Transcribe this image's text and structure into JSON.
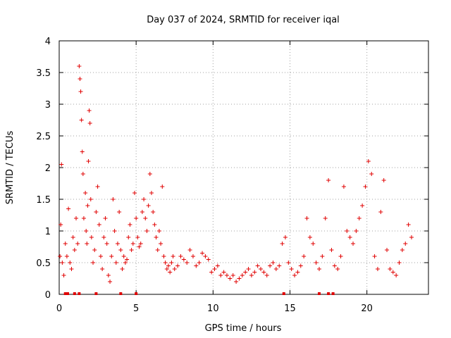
{
  "chart_data": {
    "type": "scatter",
    "title": "Day 037 of 2024, SRMTID for receiver iqal",
    "xlabel": "GPS time / hours",
    "ylabel": "SRMTID / TECUs",
    "xlim": [
      0,
      24
    ],
    "ylim": [
      0,
      4
    ],
    "xticks": [
      0,
      5,
      10,
      15,
      20
    ],
    "xtick_labels": [
      "0",
      "5",
      "10",
      "15",
      "20"
    ],
    "yticks": [
      0,
      0.5,
      1,
      1.5,
      2,
      2.5,
      3,
      3.5,
      4
    ],
    "ytick_labels": [
      "0",
      "0.5",
      "1",
      "1.5",
      "2",
      "2.5",
      "3",
      "3.5",
      "4"
    ],
    "grid": true,
    "marker": "+",
    "series": [
      {
        "name": "SRMTID",
        "color": "#e00000",
        "x": [
          0.05,
          0.1,
          0.15,
          0.2,
          0.3,
          0.4,
          0.5,
          0.6,
          0.7,
          0.8,
          0.9,
          1.0,
          1.1,
          1.2,
          1.3,
          1.35,
          1.4,
          1.45,
          1.5,
          1.55,
          1.6,
          1.7,
          1.75,
          1.8,
          1.85,
          1.9,
          1.95,
          2.0,
          2.05,
          2.1,
          2.2,
          2.3,
          2.4,
          2.5,
          2.6,
          2.7,
          2.8,
          2.9,
          3.0,
          3.1,
          3.2,
          3.3,
          3.4,
          3.5,
          3.6,
          3.7,
          3.8,
          3.9,
          4.0,
          4.1,
          4.2,
          4.3,
          4.4,
          4.5,
          4.6,
          4.7,
          4.8,
          4.9,
          5.0,
          5.1,
          5.2,
          5.3,
          5.4,
          5.5,
          5.6,
          5.7,
          5.8,
          5.9,
          6.0,
          6.1,
          6.2,
          6.3,
          6.4,
          6.5,
          6.6,
          6.7,
          6.8,
          6.9,
          7.0,
          7.1,
          7.2,
          7.3,
          7.4,
          7.5,
          7.7,
          7.9,
          8.1,
          8.3,
          8.5,
          8.7,
          8.9,
          9.1,
          9.3,
          9.5,
          9.7,
          9.9,
          10.1,
          10.3,
          10.5,
          10.7,
          10.9,
          11.1,
          11.3,
          11.5,
          11.7,
          11.9,
          12.1,
          12.3,
          12.5,
          12.7,
          12.9,
          13.1,
          13.3,
          13.5,
          13.7,
          13.9,
          14.1,
          14.3,
          14.5,
          14.7,
          14.9,
          15.1,
          15.3,
          15.5,
          15.7,
          15.9,
          16.1,
          16.3,
          16.5,
          16.7,
          16.9,
          17.1,
          17.3,
          17.5,
          17.7,
          17.9,
          18.1,
          18.3,
          18.5,
          18.7,
          18.9,
          19.1,
          19.3,
          19.5,
          19.7,
          19.9,
          20.1,
          20.3,
          20.5,
          20.7,
          20.9,
          21.1,
          21.3,
          21.5,
          21.7,
          21.9,
          22.1,
          22.3,
          22.5,
          22.7,
          22.9
        ],
        "y": [
          0.6,
          1.1,
          2.05,
          0.5,
          0.3,
          0.8,
          0.6,
          1.35,
          0.5,
          0.4,
          0.9,
          0.7,
          1.2,
          0.8,
          3.6,
          3.4,
          3.2,
          2.75,
          2.25,
          1.9,
          1.2,
          1.6,
          1.0,
          0.8,
          1.4,
          2.1,
          2.9,
          2.7,
          1.5,
          0.9,
          0.5,
          0.7,
          1.3,
          1.7,
          1.1,
          0.6,
          0.4,
          0.9,
          1.2,
          0.8,
          0.3,
          0.2,
          0.6,
          1.5,
          1.0,
          0.5,
          0.8,
          1.3,
          0.7,
          0.4,
          0.6,
          0.5,
          0.55,
          0.9,
          1.1,
          0.7,
          0.8,
          1.6,
          1.2,
          0.9,
          0.75,
          0.8,
          1.3,
          1.5,
          1.2,
          1.0,
          1.4,
          1.9,
          1.6,
          1.3,
          1.1,
          0.9,
          0.7,
          1.0,
          0.8,
          1.7,
          0.6,
          0.5,
          0.4,
          0.45,
          0.35,
          0.5,
          0.6,
          0.4,
          0.45,
          0.6,
          0.55,
          0.5,
          0.7,
          0.6,
          0.45,
          0.5,
          0.65,
          0.6,
          0.55,
          0.35,
          0.4,
          0.45,
          0.3,
          0.35,
          0.3,
          0.25,
          0.3,
          0.2,
          0.25,
          0.3,
          0.35,
          0.4,
          0.3,
          0.35,
          0.45,
          0.4,
          0.35,
          0.3,
          0.45,
          0.5,
          0.4,
          0.45,
          0.8,
          0.9,
          0.5,
          0.4,
          0.3,
          0.35,
          0.45,
          0.6,
          1.2,
          0.9,
          0.8,
          0.5,
          0.4,
          0.6,
          1.2,
          1.8,
          0.7,
          0.45,
          0.4,
          0.6,
          1.7,
          1.0,
          0.9,
          0.8,
          1.0,
          1.2,
          1.4,
          1.7,
          2.1,
          1.9,
          0.6,
          0.4,
          1.3,
          1.8,
          0.7,
          0.4,
          0.35,
          0.3,
          0.5,
          0.7,
          0.8,
          1.1,
          0.9
        ]
      }
    ],
    "markers_at_zero": [
      0.4,
      0.55,
      1.0,
      1.3,
      2.4,
      4.0,
      5.0,
      14.6,
      16.9,
      17.5,
      17.8
    ]
  }
}
